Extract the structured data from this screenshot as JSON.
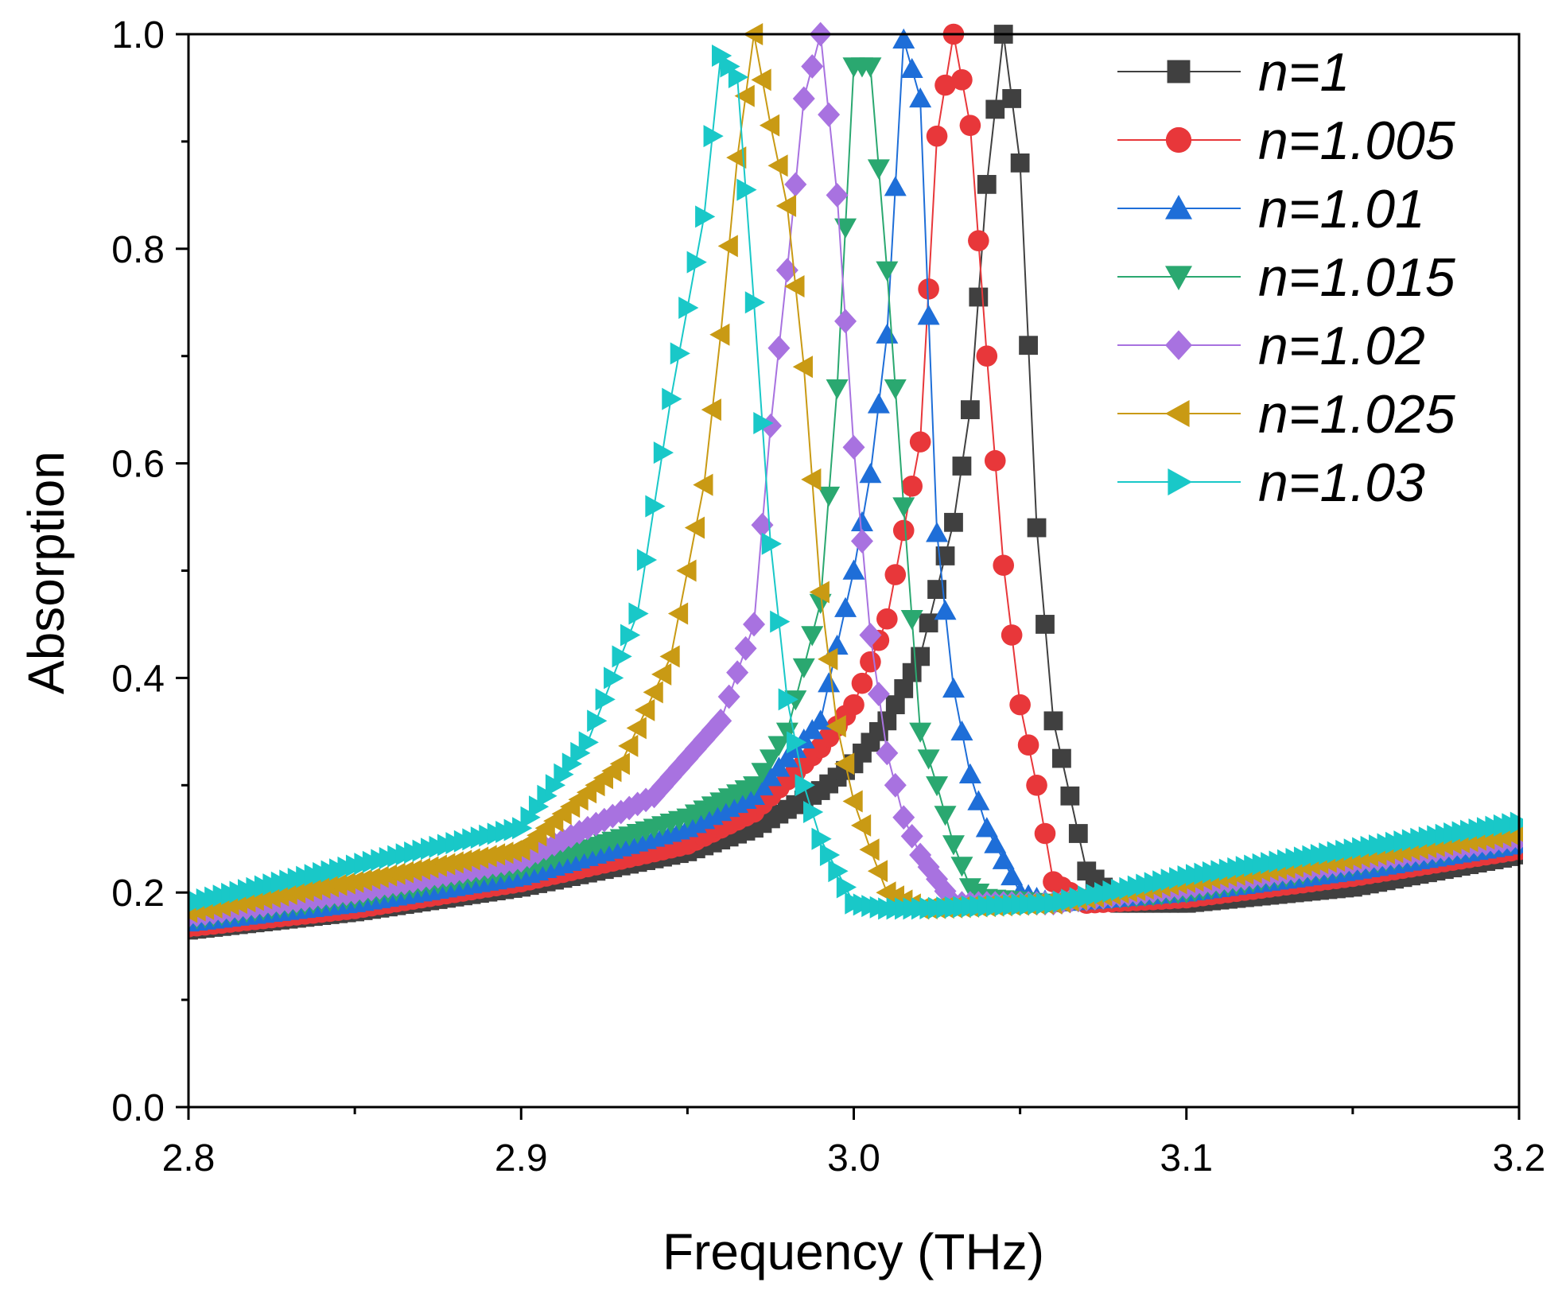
{
  "chart_data": {
    "type": "line",
    "title": "",
    "xlabel": "Frequency (THz)",
    "ylabel": "Absorption",
    "xlim": [
      2.8,
      3.2
    ],
    "ylim": [
      0.0,
      1.0
    ],
    "x_ticks": [
      2.8,
      2.9,
      3.0,
      3.1,
      3.2
    ],
    "x_tick_labels": [
      "2.8",
      "2.9",
      "3.0",
      "3.1",
      "3.2"
    ],
    "y_ticks": [
      0.0,
      0.2,
      0.4,
      0.6,
      0.8,
      1.0
    ],
    "y_tick_labels": [
      "0.0",
      "0.2",
      "0.4",
      "0.6",
      "0.8",
      "1.0"
    ],
    "grid": false,
    "legend_position": "top-right",
    "series": [
      {
        "name": "n=1",
        "color": "#404040",
        "marker": "square",
        "x": [
          2.8,
          2.85,
          2.9,
          2.95,
          2.97,
          2.99,
          3.0,
          3.01,
          3.02,
          3.03,
          3.035,
          3.04,
          3.045,
          3.05,
          3.055,
          3.06,
          3.065,
          3.07,
          3.08,
          3.1,
          3.15,
          3.2
        ],
        "y": [
          0.165,
          0.182,
          0.205,
          0.238,
          0.26,
          0.295,
          0.32,
          0.36,
          0.42,
          0.545,
          0.65,
          0.86,
          1.0,
          0.88,
          0.54,
          0.36,
          0.29,
          0.22,
          0.19,
          0.19,
          0.205,
          0.235
        ]
      },
      {
        "name": "n=1.005",
        "color": "#e8373a",
        "marker": "circle",
        "x": [
          2.8,
          2.85,
          2.9,
          2.95,
          2.97,
          2.99,
          3.0,
          3.01,
          3.02,
          3.025,
          3.03,
          3.035,
          3.04,
          3.045,
          3.05,
          3.055,
          3.06,
          3.07,
          3.1,
          3.15,
          3.2
        ],
        "y": [
          0.168,
          0.185,
          0.21,
          0.245,
          0.275,
          0.335,
          0.375,
          0.455,
          0.62,
          0.905,
          1.0,
          0.915,
          0.7,
          0.505,
          0.375,
          0.3,
          0.21,
          0.19,
          0.195,
          0.215,
          0.24
        ]
      },
      {
        "name": "n=1.01",
        "color": "#1e6ed8",
        "marker": "triangle-up",
        "x": [
          2.8,
          2.85,
          2.9,
          2.95,
          2.97,
          2.99,
          3.0,
          3.005,
          3.01,
          3.015,
          3.02,
          3.025,
          3.03,
          3.035,
          3.04,
          3.045,
          3.05,
          3.06,
          3.1,
          3.15,
          3.2
        ],
        "y": [
          0.172,
          0.19,
          0.215,
          0.26,
          0.29,
          0.36,
          0.5,
          0.59,
          0.72,
          0.995,
          0.94,
          0.535,
          0.39,
          0.31,
          0.26,
          0.23,
          0.2,
          0.19,
          0.2,
          0.22,
          0.245
        ]
      },
      {
        "name": "n=1.015",
        "color": "#2aa870",
        "marker": "triangle-down",
        "x": [
          2.8,
          2.85,
          2.9,
          2.95,
          2.97,
          2.98,
          2.99,
          2.995,
          3.0,
          3.005,
          3.01,
          3.015,
          3.02,
          3.025,
          3.03,
          3.035,
          3.04,
          3.06,
          3.1,
          3.15,
          3.2
        ],
        "y": [
          0.175,
          0.195,
          0.222,
          0.27,
          0.3,
          0.35,
          0.47,
          0.67,
          0.97,
          0.97,
          0.78,
          0.56,
          0.35,
          0.3,
          0.245,
          0.205,
          0.195,
          0.19,
          0.2,
          0.225,
          0.248
        ]
      },
      {
        "name": "n=1.02",
        "color": "#a872e0",
        "marker": "diamond",
        "x": [
          2.8,
          2.85,
          2.9,
          2.94,
          2.96,
          2.97,
          2.975,
          2.98,
          2.985,
          2.99,
          2.995,
          3.0,
          3.005,
          3.01,
          3.015,
          3.02,
          3.03,
          3.06,
          3.1,
          3.15,
          3.2
        ],
        "y": [
          0.178,
          0.2,
          0.23,
          0.29,
          0.36,
          0.45,
          0.635,
          0.78,
          0.94,
          1.0,
          0.85,
          0.615,
          0.44,
          0.33,
          0.27,
          0.235,
          0.19,
          0.19,
          0.205,
          0.228,
          0.25
        ]
      },
      {
        "name": "n=1.025",
        "color": "#c99a14",
        "marker": "triangle-left",
        "x": [
          2.8,
          2.85,
          2.9,
          2.93,
          2.945,
          2.955,
          2.96,
          2.965,
          2.97,
          2.975,
          2.98,
          2.985,
          2.99,
          2.995,
          3.0,
          3.005,
          3.01,
          3.02,
          3.06,
          3.1,
          3.15,
          3.2
        ],
        "y": [
          0.182,
          0.21,
          0.24,
          0.32,
          0.42,
          0.58,
          0.72,
          0.885,
          1.0,
          0.915,
          0.84,
          0.69,
          0.48,
          0.355,
          0.285,
          0.24,
          0.2,
          0.185,
          0.19,
          0.21,
          0.232,
          0.255
        ]
      },
      {
        "name": "n=1.03",
        "color": "#19c8c8",
        "marker": "triangle-right",
        "x": [
          2.8,
          2.85,
          2.9,
          2.92,
          2.935,
          2.945,
          2.955,
          2.96,
          2.965,
          2.97,
          2.975,
          2.98,
          2.985,
          2.99,
          3.0,
          3.01,
          3.02,
          3.06,
          3.1,
          3.15,
          3.2
        ],
        "y": [
          0.19,
          0.225,
          0.26,
          0.34,
          0.46,
          0.66,
          0.83,
          0.98,
          0.96,
          0.75,
          0.525,
          0.38,
          0.3,
          0.25,
          0.19,
          0.185,
          0.185,
          0.19,
          0.215,
          0.24,
          0.265
        ]
      }
    ]
  }
}
